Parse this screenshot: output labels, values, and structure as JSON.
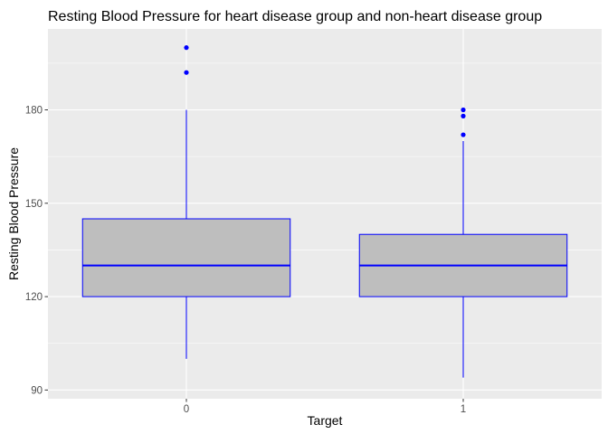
{
  "chart_data": {
    "type": "boxplot",
    "title": "Resting Blood Pressure for heart disease group and non-heart disease group",
    "xlabel": "Target",
    "ylabel": "Resting Blood Pressure",
    "categories": [
      "0",
      "1"
    ],
    "ylim": [
      87.2,
      206
    ],
    "yticks": [
      90,
      120,
      150,
      180
    ],
    "y_tick_labels": [
      "90",
      "120",
      "150",
      "180"
    ],
    "grid": true,
    "boxes": [
      {
        "category": "0",
        "whisker_low": 100,
        "q1": 120,
        "median": 130,
        "q3": 145,
        "whisker_high": 180,
        "outliers": [
          192,
          200
        ]
      },
      {
        "category": "1",
        "whisker_low": 94,
        "q1": 120,
        "median": 130,
        "q3": 140,
        "whisker_high": 170,
        "outliers": [
          172,
          178,
          180
        ]
      }
    ],
    "colors": {
      "panel": "#ebebeb",
      "grid": "#ffffff",
      "box_fill": "#bebebe",
      "box_stroke": "#0000ff",
      "outlier": "#0000ff",
      "tick": "#333333"
    }
  }
}
